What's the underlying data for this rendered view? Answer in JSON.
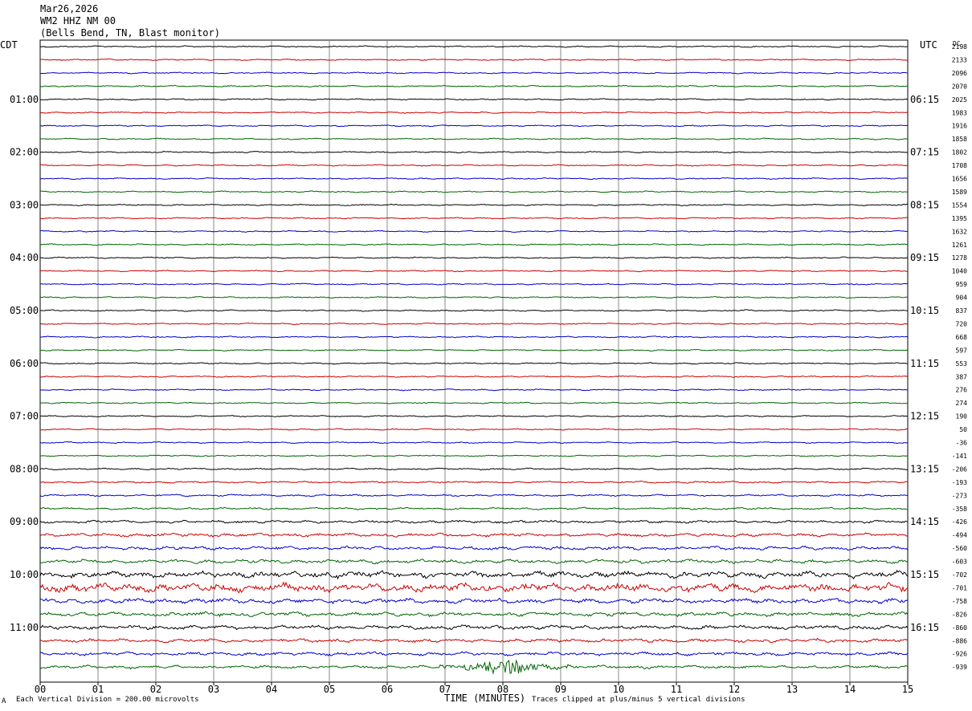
{
  "header": {
    "date": "Mar26,2026",
    "station": "WM2 HHZ NM 00",
    "location": "(Bells Bend, TN, Blast monitor)"
  },
  "footer": {
    "scale_note": "Each Vertical Division =  200.00 microvolts",
    "clip_note": "Traces clipped at plus/minus 5 vertical divisions",
    "corner_mark": "A"
  },
  "chart_data": {
    "type": "line",
    "subtype": "helicorder",
    "xlabel": "TIME (MINUTES)",
    "x_ticks": [
      "00",
      "01",
      "02",
      "03",
      "04",
      "05",
      "06",
      "07",
      "08",
      "09",
      "10",
      "11",
      "12",
      "13",
      "14",
      "15"
    ],
    "xlim": [
      0,
      15
    ],
    "left_axis_title": "CDT",
    "right_axis_title": "UTC",
    "dc_title": "DC",
    "left_hour_labels": [
      "01:00",
      "02:00",
      "03:00",
      "04:00",
      "05:00",
      "06:00",
      "07:00",
      "08:00",
      "09:00",
      "10:00",
      "11:00"
    ],
    "right_hour_labels": [
      "06:15",
      "07:15",
      "08:15",
      "09:15",
      "10:15",
      "11:15",
      "12:15",
      "13:15",
      "14:15",
      "15:15",
      "16:15"
    ],
    "traces_per_hour": 4,
    "trace_colors": [
      "#000000",
      "#cc0000",
      "#0000cc",
      "#006600"
    ],
    "grid": true,
    "dc_offsets": [
      "2198",
      "2133",
      "2096",
      "2070",
      "2025",
      "1983",
      "1916",
      "1858",
      "1802",
      "1708",
      "1656",
      "1589",
      "1554",
      "1395",
      "1632",
      "1261",
      "1278",
      "1040",
      "959",
      "904",
      "837",
      "720",
      "668",
      "597",
      "553",
      "387",
      "276",
      "274",
      "190",
      "50",
      "-36",
      "-141",
      "-206",
      "-193",
      "-273",
      "-358",
      "-426",
      "-494",
      "-560",
      "-603",
      "-702",
      "-701",
      "-758",
      "-826",
      "-860",
      "-886",
      "-926",
      "-939"
    ],
    "trace_activity": [
      1,
      1,
      1,
      1,
      1,
      1,
      1,
      1,
      1,
      1,
      1,
      1,
      1,
      1,
      1,
      1,
      1,
      1,
      1,
      1,
      1,
      1,
      1,
      1,
      1,
      1,
      1,
      1,
      1,
      1,
      1,
      1,
      1.2,
      1.3,
      1.4,
      1.5,
      2,
      2.4,
      2.6,
      2.8,
      4.5,
      6,
      3.5,
      3,
      3,
      2.6,
      2.5,
      2.2
    ],
    "events": [
      {
        "trace_index": 47,
        "start_min": 6.9,
        "end_min": 9.2,
        "peak_min": 8.05,
        "peak_amplitude": 5
      }
    ]
  }
}
